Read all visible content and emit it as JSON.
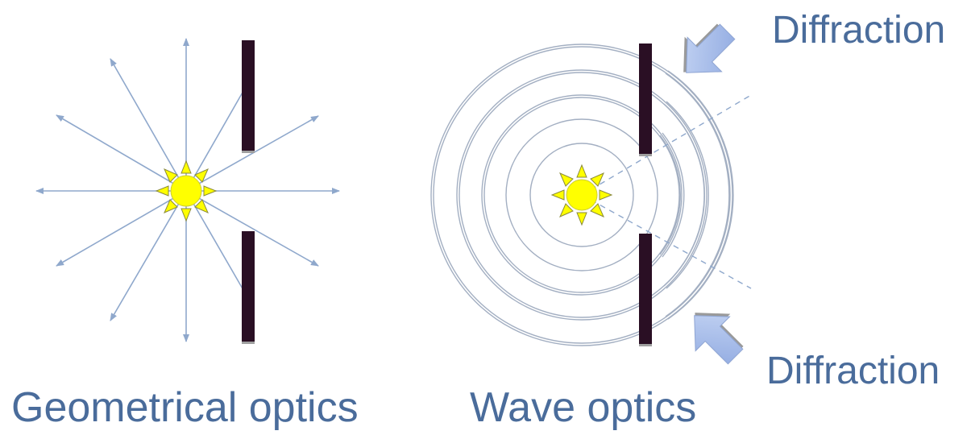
{
  "captions": {
    "geometrical": "Geometrical optics",
    "wave": "Wave optics"
  },
  "annotations": {
    "diffraction_top": "Diffraction",
    "diffraction_bottom": "Diffraction"
  },
  "colors": {
    "text": "#4a6c9b",
    "ray": "#8fa8cc",
    "wavefront": "#a3afc2",
    "barrier": "#2a0f24",
    "sun_fill": "#ffff00",
    "sun_outline": "#8a8a3a",
    "arrow_fill": "#b3c7ef",
    "arrow_stroke": "#8ea4d2"
  },
  "icons": {
    "light_source": "sun-icon",
    "pointer": "block-arrow-icon"
  }
}
